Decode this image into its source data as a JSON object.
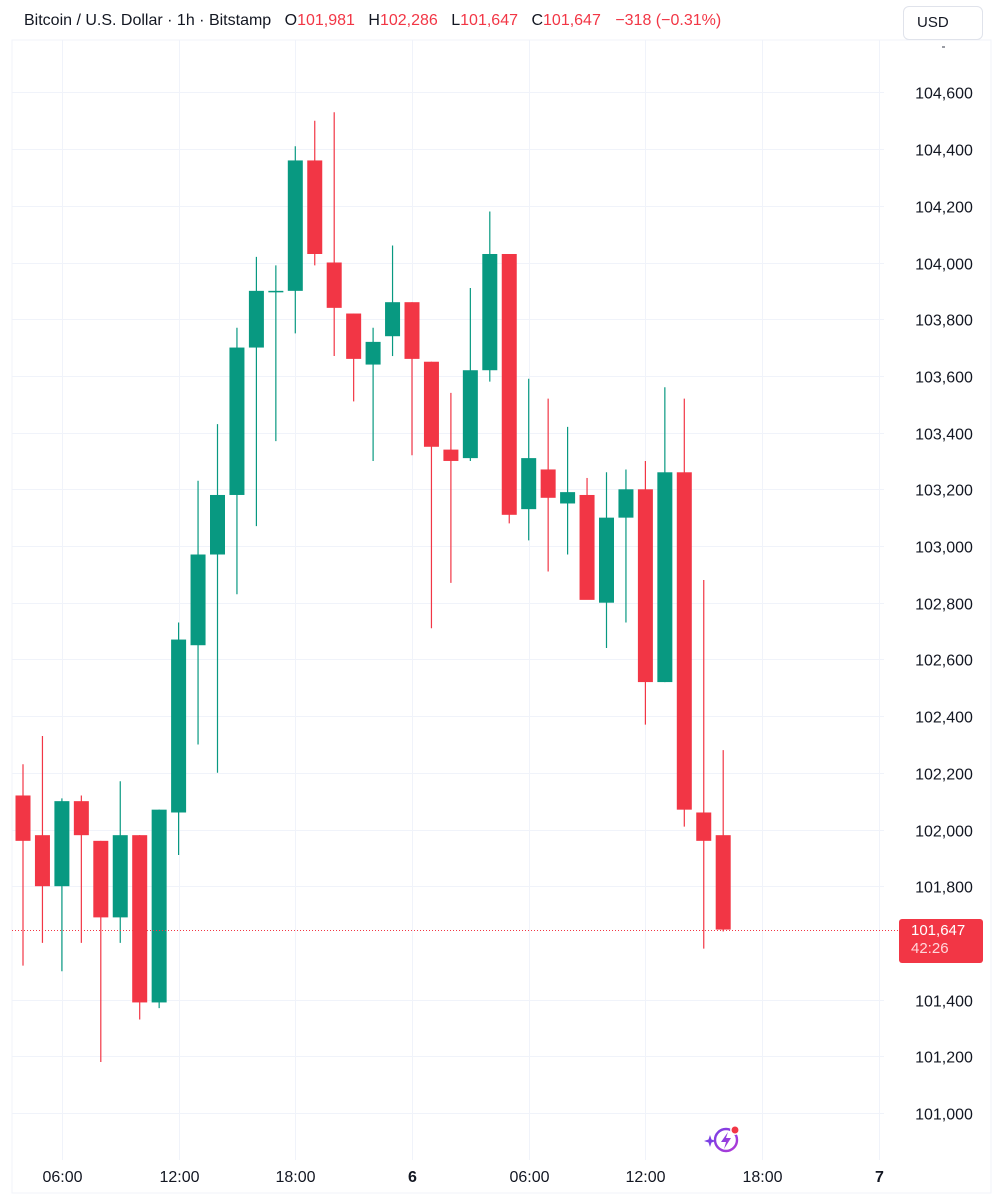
{
  "header": {
    "symbol": "Bitcoin / U.S. Dollar · 1h · Bitstamp",
    "open_label": "O",
    "open": "101,981",
    "high_label": "H",
    "high": "102,286",
    "low_label": "L",
    "low": "101,647",
    "close_label": "C",
    "close": "101,647",
    "change": "−318 (−0.31%)"
  },
  "currency_button": "USD",
  "last_price_tag": {
    "price": "101,647",
    "countdown": "42:26"
  },
  "colors": {
    "up": "#089981",
    "down": "#f23645",
    "grid": "#f0f3fa",
    "text": "#131722"
  },
  "icons": {
    "assistant": "sparkle-lightning-icon"
  },
  "chart_data": {
    "type": "candlestick",
    "ylim": [
      100900,
      104750
    ],
    "y_ticks": [
      101000,
      101200,
      101400,
      101800,
      102000,
      102200,
      102400,
      102600,
      102800,
      103000,
      103200,
      103400,
      103600,
      103800,
      104000,
      104200,
      104400,
      104600
    ],
    "y_tick_labels": [
      "101,000",
      "101,200",
      "101,400",
      "101,800",
      "102,000",
      "102,200",
      "102,400",
      "102,600",
      "102,800",
      "103,000",
      "103,200",
      "103,400",
      "103,600",
      "103,800",
      "104,000",
      "104,200",
      "104,400",
      "104,600"
    ],
    "x_labels": [
      {
        "label": "06:00",
        "index": 2,
        "bold": false
      },
      {
        "label": "12:00",
        "index": 8,
        "bold": false
      },
      {
        "label": "18:00",
        "index": 14,
        "bold": false
      },
      {
        "label": "6",
        "index": 20,
        "bold": true
      },
      {
        "label": "06:00",
        "index": 26,
        "bold": false
      },
      {
        "label": "12:00",
        "index": 32,
        "bold": false
      },
      {
        "label": "18:00",
        "index": 38,
        "bold": false
      },
      {
        "label": "7",
        "index": 44,
        "bold": true
      }
    ],
    "total_slots": 45,
    "candles": [
      {
        "o": 102120,
        "h": 102230,
        "l": 101520,
        "c": 101960
      },
      {
        "o": 101980,
        "h": 102330,
        "l": 101600,
        "c": 101800
      },
      {
        "o": 101800,
        "h": 102110,
        "l": 101500,
        "c": 102100
      },
      {
        "o": 102100,
        "h": 102120,
        "l": 101600,
        "c": 101980
      },
      {
        "o": 101960,
        "h": 101960,
        "l": 101180,
        "c": 101690
      },
      {
        "o": 101690,
        "h": 102170,
        "l": 101600,
        "c": 101980
      },
      {
        "o": 101980,
        "h": 101980,
        "l": 101330,
        "c": 101390
      },
      {
        "o": 101390,
        "h": 102070,
        "l": 101370,
        "c": 102070
      },
      {
        "o": 102060,
        "h": 102730,
        "l": 101910,
        "c": 102670
      },
      {
        "o": 102650,
        "h": 103230,
        "l": 102300,
        "c": 102970
      },
      {
        "o": 102970,
        "h": 103430,
        "l": 102200,
        "c": 103180
      },
      {
        "o": 103180,
        "h": 103770,
        "l": 102830,
        "c": 103700
      },
      {
        "o": 103700,
        "h": 104020,
        "l": 103070,
        "c": 103900
      },
      {
        "o": 103900,
        "h": 103990,
        "l": 103370,
        "c": 103900
      },
      {
        "o": 103900,
        "h": 104410,
        "l": 103750,
        "c": 104360
      },
      {
        "o": 104360,
        "h": 104500,
        "l": 103990,
        "c": 104030
      },
      {
        "o": 104000,
        "h": 104530,
        "l": 103670,
        "c": 103840
      },
      {
        "o": 103820,
        "h": 103820,
        "l": 103510,
        "c": 103660
      },
      {
        "o": 103640,
        "h": 103770,
        "l": 103300,
        "c": 103720
      },
      {
        "o": 103740,
        "h": 104060,
        "l": 103670,
        "c": 103860
      },
      {
        "o": 103860,
        "h": 103860,
        "l": 103320,
        "c": 103660
      },
      {
        "o": 103650,
        "h": 103650,
        "l": 102710,
        "c": 103350
      },
      {
        "o": 103340,
        "h": 103540,
        "l": 102870,
        "c": 103300
      },
      {
        "o": 103310,
        "h": 103910,
        "l": 103300,
        "c": 103620
      },
      {
        "o": 103620,
        "h": 104180,
        "l": 103580,
        "c": 104030
      },
      {
        "o": 104030,
        "h": 104030,
        "l": 103080,
        "c": 103110
      },
      {
        "o": 103130,
        "h": 103590,
        "l": 103020,
        "c": 103310
      },
      {
        "o": 103270,
        "h": 103520,
        "l": 102910,
        "c": 103170
      },
      {
        "o": 103150,
        "h": 103420,
        "l": 102970,
        "c": 103190
      },
      {
        "o": 103180,
        "h": 103240,
        "l": 102820,
        "c": 102810
      },
      {
        "o": 102800,
        "h": 103260,
        "l": 102640,
        "c": 103100
      },
      {
        "o": 103100,
        "h": 103270,
        "l": 102730,
        "c": 103200
      },
      {
        "o": 103200,
        "h": 103300,
        "l": 102370,
        "c": 102520
      },
      {
        "o": 102520,
        "h": 103560,
        "l": 102520,
        "c": 103260
      },
      {
        "o": 103260,
        "h": 103520,
        "l": 102010,
        "c": 102070
      },
      {
        "o": 102060,
        "h": 102880,
        "l": 101580,
        "c": 101960
      },
      {
        "o": 101980,
        "h": 102280,
        "l": 101640,
        "c": 101647
      }
    ],
    "last_price": 101647
  }
}
